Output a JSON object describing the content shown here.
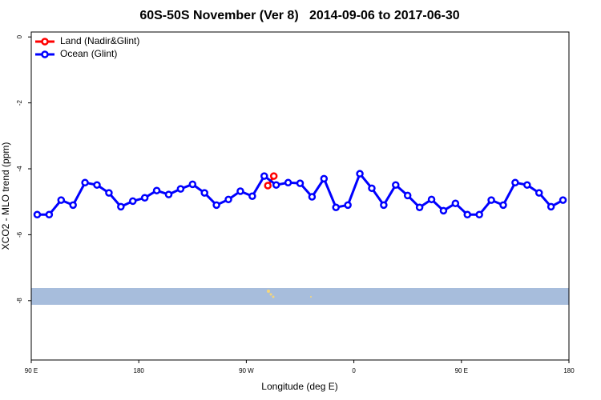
{
  "chart_data": {
    "type": "line",
    "title": "60S-50S November (Ver 8)   2014-09-06 to 2017-06-30",
    "x_label": "Longitude (deg E)",
    "y_label": "XCO2 - MLO trend (ppm)",
    "xlim": [
      90,
      540
    ],
    "ylim": [
      -9.8,
      0.15
    ],
    "xticks": [
      {
        "value": 90,
        "label": "90 E"
      },
      {
        "value": 180,
        "label": "180"
      },
      {
        "value": 270,
        "label": "90 W"
      },
      {
        "value": 360,
        "label": "0"
      },
      {
        "value": 450,
        "label": "90 E"
      },
      {
        "value": 540,
        "label": "180"
      }
    ],
    "yticks": [
      0,
      -2,
      -4,
      -6,
      -8
    ],
    "legend": "top-left",
    "series": [
      {
        "name": "Land (Nadir&Glint)",
        "color": "#ff0000",
        "x": [
          288,
          293
        ],
        "values": [
          -4.51,
          -4.22
        ]
      },
      {
        "name": "Ocean (Glint)",
        "color": "#0000ff",
        "x": [
          95,
          105,
          115,
          125,
          135,
          145,
          155,
          165,
          175,
          185,
          195,
          205,
          215,
          225,
          235,
          245,
          255,
          265,
          275,
          285,
          295,
          305,
          315,
          325,
          335,
          345,
          355,
          365,
          375,
          385,
          395,
          405,
          415,
          425,
          435,
          445,
          455,
          465,
          475,
          485,
          495,
          505,
          515,
          525,
          535
        ],
        "values": [
          -5.39,
          -5.39,
          -4.95,
          -5.1,
          -4.42,
          -4.49,
          -4.73,
          -5.15,
          -4.98,
          -4.88,
          -4.66,
          -4.78,
          -4.61,
          -4.47,
          -4.73,
          -5.1,
          -4.93,
          -4.68,
          -4.83,
          -4.22,
          -4.49,
          -4.42,
          -4.44,
          -4.85,
          -4.3,
          -5.17,
          -5.1,
          -4.15,
          -4.59,
          -5.1,
          -4.49,
          -4.81,
          -5.17,
          -4.93,
          -5.27,
          -5.05,
          -5.39,
          -5.39,
          -4.95,
          -5.1,
          -4.42,
          -4.49,
          -4.73,
          -5.15,
          -4.95
        ]
      }
    ]
  }
}
